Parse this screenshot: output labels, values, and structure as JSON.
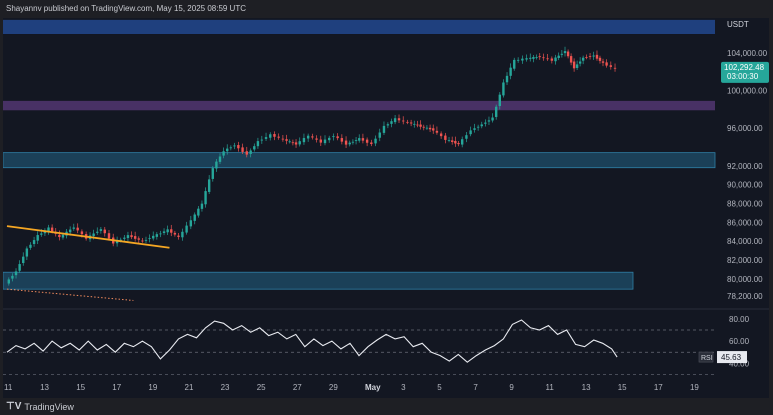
{
  "header": {
    "publisher_text": "Shayannv published on TradingView.com, May 15, 2025 08:59 UTC"
  },
  "footer": {
    "brand": "TradingView",
    "brand_icon": "tradingview-logo-icon"
  },
  "colors": {
    "background": "#131722",
    "candle_up": "#26a69a",
    "candle_down": "#ef5350",
    "zone_blue": "#244f9e",
    "zone_purple": "#5b3b7c",
    "zone_teal": "#1f4f6b",
    "trendline": "#f5a623",
    "rsi_line": "#e8eaf0",
    "price_badge": "#26a69a"
  },
  "chart_data": [
    {
      "type": "candlestick",
      "title": "",
      "currency_label": "USDT",
      "ylim": [
        76900,
        107700
      ],
      "y_ticks": [
        {
          "value": 104000,
          "label": "104,000.00"
        },
        {
          "value": 100000,
          "label": "100,000.00"
        },
        {
          "value": 96000,
          "label": "96,000.00"
        },
        {
          "value": 92000,
          "label": "92,000.00"
        },
        {
          "value": 90000,
          "label": "90,000.00"
        },
        {
          "value": 88000,
          "label": "88,000.00"
        },
        {
          "value": 86000,
          "label": "86,000.00"
        },
        {
          "value": 84000,
          "label": "84,000.00"
        },
        {
          "value": 82000,
          "label": "82,000.00"
        },
        {
          "value": 80000,
          "label": "80,000.00"
        },
        {
          "value": 78200,
          "label": "78,200.00"
        }
      ],
      "current_price": {
        "value": 102292.48,
        "label": "102,292.48",
        "countdown": "03:00:30"
      },
      "x_range_days": [
        11,
        50
      ],
      "x_ticks": [
        {
          "day": 11,
          "label": "11"
        },
        {
          "day": 13,
          "label": "13"
        },
        {
          "day": 15,
          "label": "15"
        },
        {
          "day": 17,
          "label": "17"
        },
        {
          "day": 19,
          "label": "19"
        },
        {
          "day": 21,
          "label": "21"
        },
        {
          "day": 23,
          "label": "23"
        },
        {
          "day": 25,
          "label": "25"
        },
        {
          "day": 27,
          "label": "27"
        },
        {
          "day": 29,
          "label": "29"
        },
        {
          "day": 31,
          "label": "May",
          "bold": true
        },
        {
          "day": 33,
          "label": "3"
        },
        {
          "day": 35,
          "label": "5"
        },
        {
          "day": 37,
          "label": "7"
        },
        {
          "day": 39,
          "label": "9"
        },
        {
          "day": 41,
          "label": "11"
        },
        {
          "day": 43,
          "label": "13"
        },
        {
          "day": 45,
          "label": "15"
        },
        {
          "day": 47,
          "label": "17"
        },
        {
          "day": 49,
          "label": "19"
        }
      ],
      "zones": [
        {
          "low": 106000,
          "high": 107500,
          "color": "#244f9e"
        },
        {
          "low": 97900,
          "high": 98900,
          "color": "#5b3b7c"
        },
        {
          "low": 91800,
          "high": 93400,
          "color": "#1f4f6b"
        },
        {
          "low": 78900,
          "high": 80700,
          "color": "#1f4f6b"
        }
      ],
      "trendline": {
        "from": [
          11,
          85600
        ],
        "to": [
          20.0,
          83300
        ]
      },
      "dotted_line": {
        "from": [
          11,
          78900
        ],
        "to": [
          18.0,
          77700
        ]
      },
      "price_path": [
        [
          11.0,
          79500
        ],
        [
          11.6,
          80800
        ],
        [
          12.2,
          83200
        ],
        [
          12.8,
          84600
        ],
        [
          13.4,
          85400
        ],
        [
          14.0,
          84400
        ],
        [
          14.8,
          85500
        ],
        [
          15.5,
          84300
        ],
        [
          16.3,
          85300
        ],
        [
          17.0,
          83800
        ],
        [
          17.8,
          84600
        ],
        [
          18.6,
          84000
        ],
        [
          19.4,
          84700
        ],
        [
          20.0,
          85200
        ],
        [
          20.6,
          84400
        ],
        [
          21.3,
          86200
        ],
        [
          21.9,
          88000
        ],
        [
          22.5,
          91800
        ],
        [
          23.1,
          93600
        ],
        [
          23.7,
          94200
        ],
        [
          24.4,
          93200
        ],
        [
          25.0,
          94600
        ],
        [
          25.7,
          95300
        ],
        [
          26.4,
          94800
        ],
        [
          27.1,
          94300
        ],
        [
          27.8,
          95200
        ],
        [
          28.5,
          94500
        ],
        [
          29.2,
          95200
        ],
        [
          29.9,
          94300
        ],
        [
          30.6,
          94900
        ],
        [
          31.3,
          94300
        ],
        [
          32.0,
          96200
        ],
        [
          32.6,
          97000
        ],
        [
          33.3,
          96600
        ],
        [
          34.0,
          96200
        ],
        [
          34.7,
          95800
        ],
        [
          35.4,
          94800
        ],
        [
          36.1,
          94300
        ],
        [
          36.8,
          95800
        ],
        [
          37.4,
          96400
        ],
        [
          38.0,
          97100
        ],
        [
          38.6,
          100800
        ],
        [
          39.2,
          103200
        ],
        [
          39.9,
          103400
        ],
        [
          40.6,
          103600
        ],
        [
          41.3,
          103200
        ],
        [
          42.0,
          104200
        ],
        [
          42.5,
          102400
        ],
        [
          43.0,
          103500
        ],
        [
          43.6,
          103700
        ],
        [
          44.1,
          102900
        ],
        [
          44.8,
          102292
        ]
      ],
      "rsi": {
        "label": "RSI",
        "current": 45.63,
        "current_label": "45.63",
        "ylim": [
          25,
          88
        ],
        "ticks": [
          {
            "value": 80,
            "label": "80.00"
          },
          {
            "value": 60,
            "label": "60.00"
          },
          {
            "value": 40,
            "label": "40.00"
          }
        ],
        "bands": [
          70,
          50,
          30
        ],
        "points": [
          [
            11.0,
            50
          ],
          [
            11.5,
            56
          ],
          [
            12.0,
            53
          ],
          [
            12.5,
            58
          ],
          [
            13.0,
            51
          ],
          [
            13.5,
            60
          ],
          [
            14.0,
            54
          ],
          [
            14.5,
            58
          ],
          [
            15.0,
            52
          ],
          [
            15.5,
            60
          ],
          [
            16.0,
            52
          ],
          [
            16.5,
            57
          ],
          [
            17.0,
            50
          ],
          [
            17.5,
            58
          ],
          [
            18.0,
            55
          ],
          [
            18.5,
            60
          ],
          [
            19.0,
            55
          ],
          [
            19.5,
            44
          ],
          [
            20.0,
            52
          ],
          [
            20.5,
            62
          ],
          [
            21.0,
            66
          ],
          [
            21.5,
            63
          ],
          [
            22.0,
            72
          ],
          [
            22.5,
            78
          ],
          [
            23.0,
            76
          ],
          [
            23.5,
            70
          ],
          [
            24.0,
            74
          ],
          [
            24.5,
            68
          ],
          [
            25.0,
            72
          ],
          [
            25.5,
            65
          ],
          [
            26.0,
            68
          ],
          [
            26.5,
            62
          ],
          [
            27.0,
            66
          ],
          [
            27.5,
            55
          ],
          [
            28.0,
            62
          ],
          [
            28.5,
            56
          ],
          [
            29.0,
            60
          ],
          [
            29.5,
            53
          ],
          [
            30.0,
            58
          ],
          [
            30.5,
            47
          ],
          [
            31.0,
            55
          ],
          [
            31.5,
            61
          ],
          [
            32.0,
            66
          ],
          [
            32.5,
            62
          ],
          [
            33.0,
            64
          ],
          [
            33.5,
            55
          ],
          [
            34.0,
            58
          ],
          [
            34.5,
            50
          ],
          [
            35.0,
            47
          ],
          [
            35.5,
            42
          ],
          [
            36.0,
            48
          ],
          [
            36.5,
            41
          ],
          [
            37.0,
            47
          ],
          [
            37.5,
            52
          ],
          [
            38.0,
            56
          ],
          [
            38.5,
            62
          ],
          [
            39.0,
            75
          ],
          [
            39.5,
            79
          ],
          [
            40.0,
            72
          ],
          [
            40.5,
            70
          ],
          [
            41.0,
            74
          ],
          [
            41.5,
            66
          ],
          [
            42.0,
            70
          ],
          [
            42.5,
            57
          ],
          [
            43.0,
            55
          ],
          [
            43.5,
            61
          ],
          [
            44.0,
            58
          ],
          [
            44.5,
            53
          ],
          [
            44.8,
            45.63
          ]
        ]
      }
    }
  ]
}
